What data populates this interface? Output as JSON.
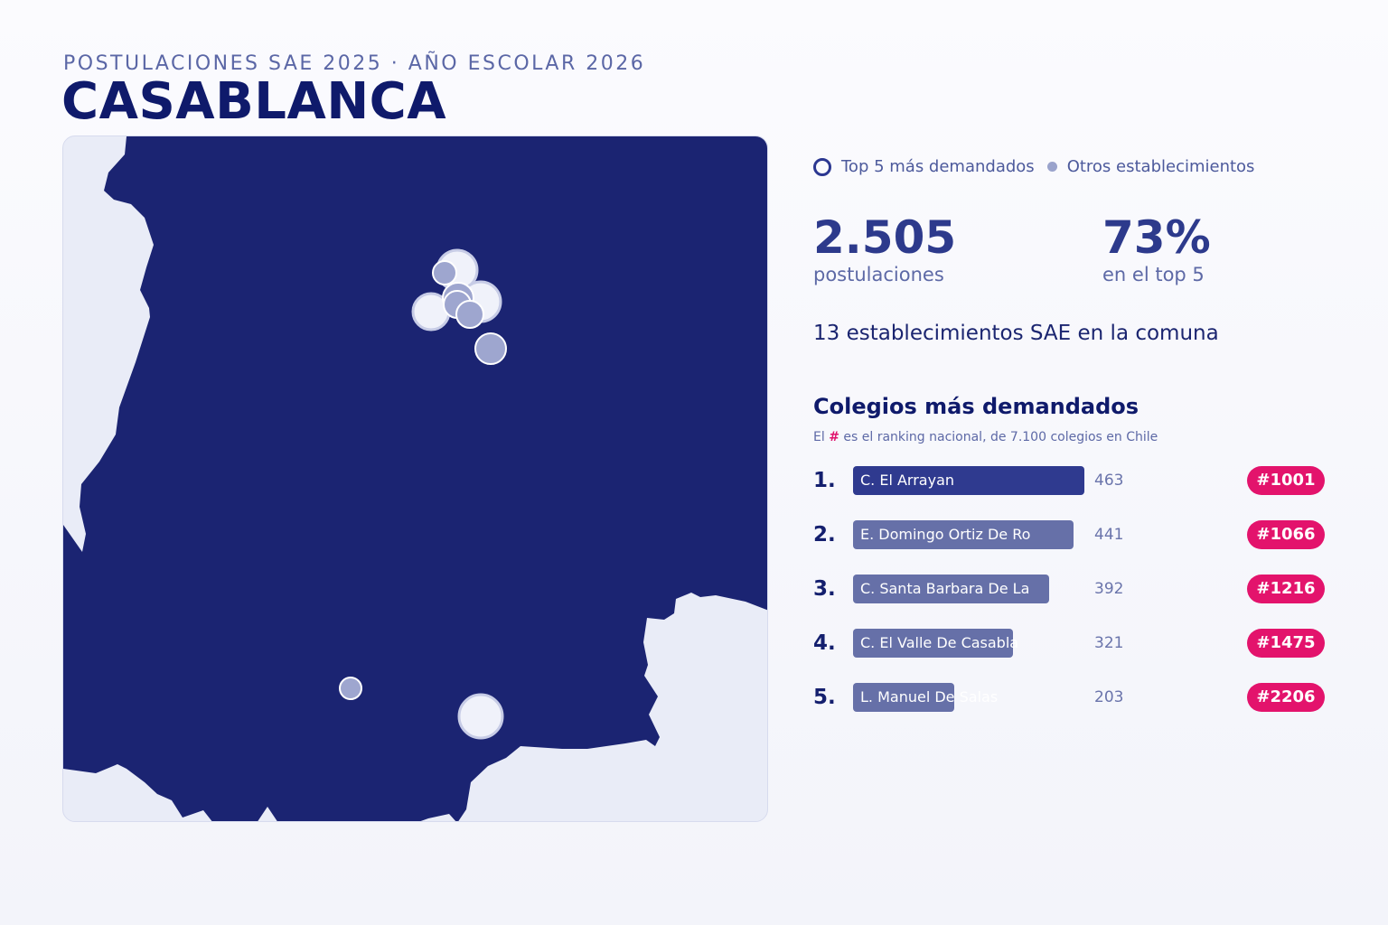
{
  "header": {
    "kicker": "POSTULACIONES SAE 2025 · AÑO ESCOLAR 2026",
    "title": "CASABLANCA"
  },
  "map": {
    "land_color": "#1b2472",
    "background_color": "#e9ecf7",
    "top5_marker_color": "#f0f2fa",
    "other_marker_color": "#9ea6cf"
  },
  "legend": {
    "top5_label": "Top 5 más demandados",
    "others_label": "Otros establecimientos"
  },
  "stats": {
    "postulaciones_value": "2.505",
    "postulaciones_label": "postulaciones",
    "top5_share_value": "73%",
    "top5_share_label": "en el top 5",
    "establecimientos_text": "13 establecimientos SAE en la comuna"
  },
  "ranking": {
    "title": "Colegios más demandados",
    "subtitle_prefix": "El",
    "subtitle_hash": "#",
    "subtitle_suffix": "es el ranking nacional, de 7.100 colegios en Chile",
    "max_value": 463,
    "items": [
      {
        "position": "1.",
        "name": "C. El Arrayan",
        "count": 463,
        "count_label": "463",
        "rank": "#1001"
      },
      {
        "position": "2.",
        "name": "E. Domingo Ortiz De Ro",
        "count": 441,
        "count_label": "441",
        "rank": "#1066"
      },
      {
        "position": "3.",
        "name": "C. Santa Barbara De La",
        "count": 392,
        "count_label": "392",
        "rank": "#1216"
      },
      {
        "position": "4.",
        "name": "C. El Valle De Casabla",
        "count": 321,
        "count_label": "321",
        "rank": "#1475"
      },
      {
        "position": "5.",
        "name": "L. Manuel De Salas",
        "count": 203,
        "count_label": "203",
        "rank": "#2206"
      }
    ]
  }
}
